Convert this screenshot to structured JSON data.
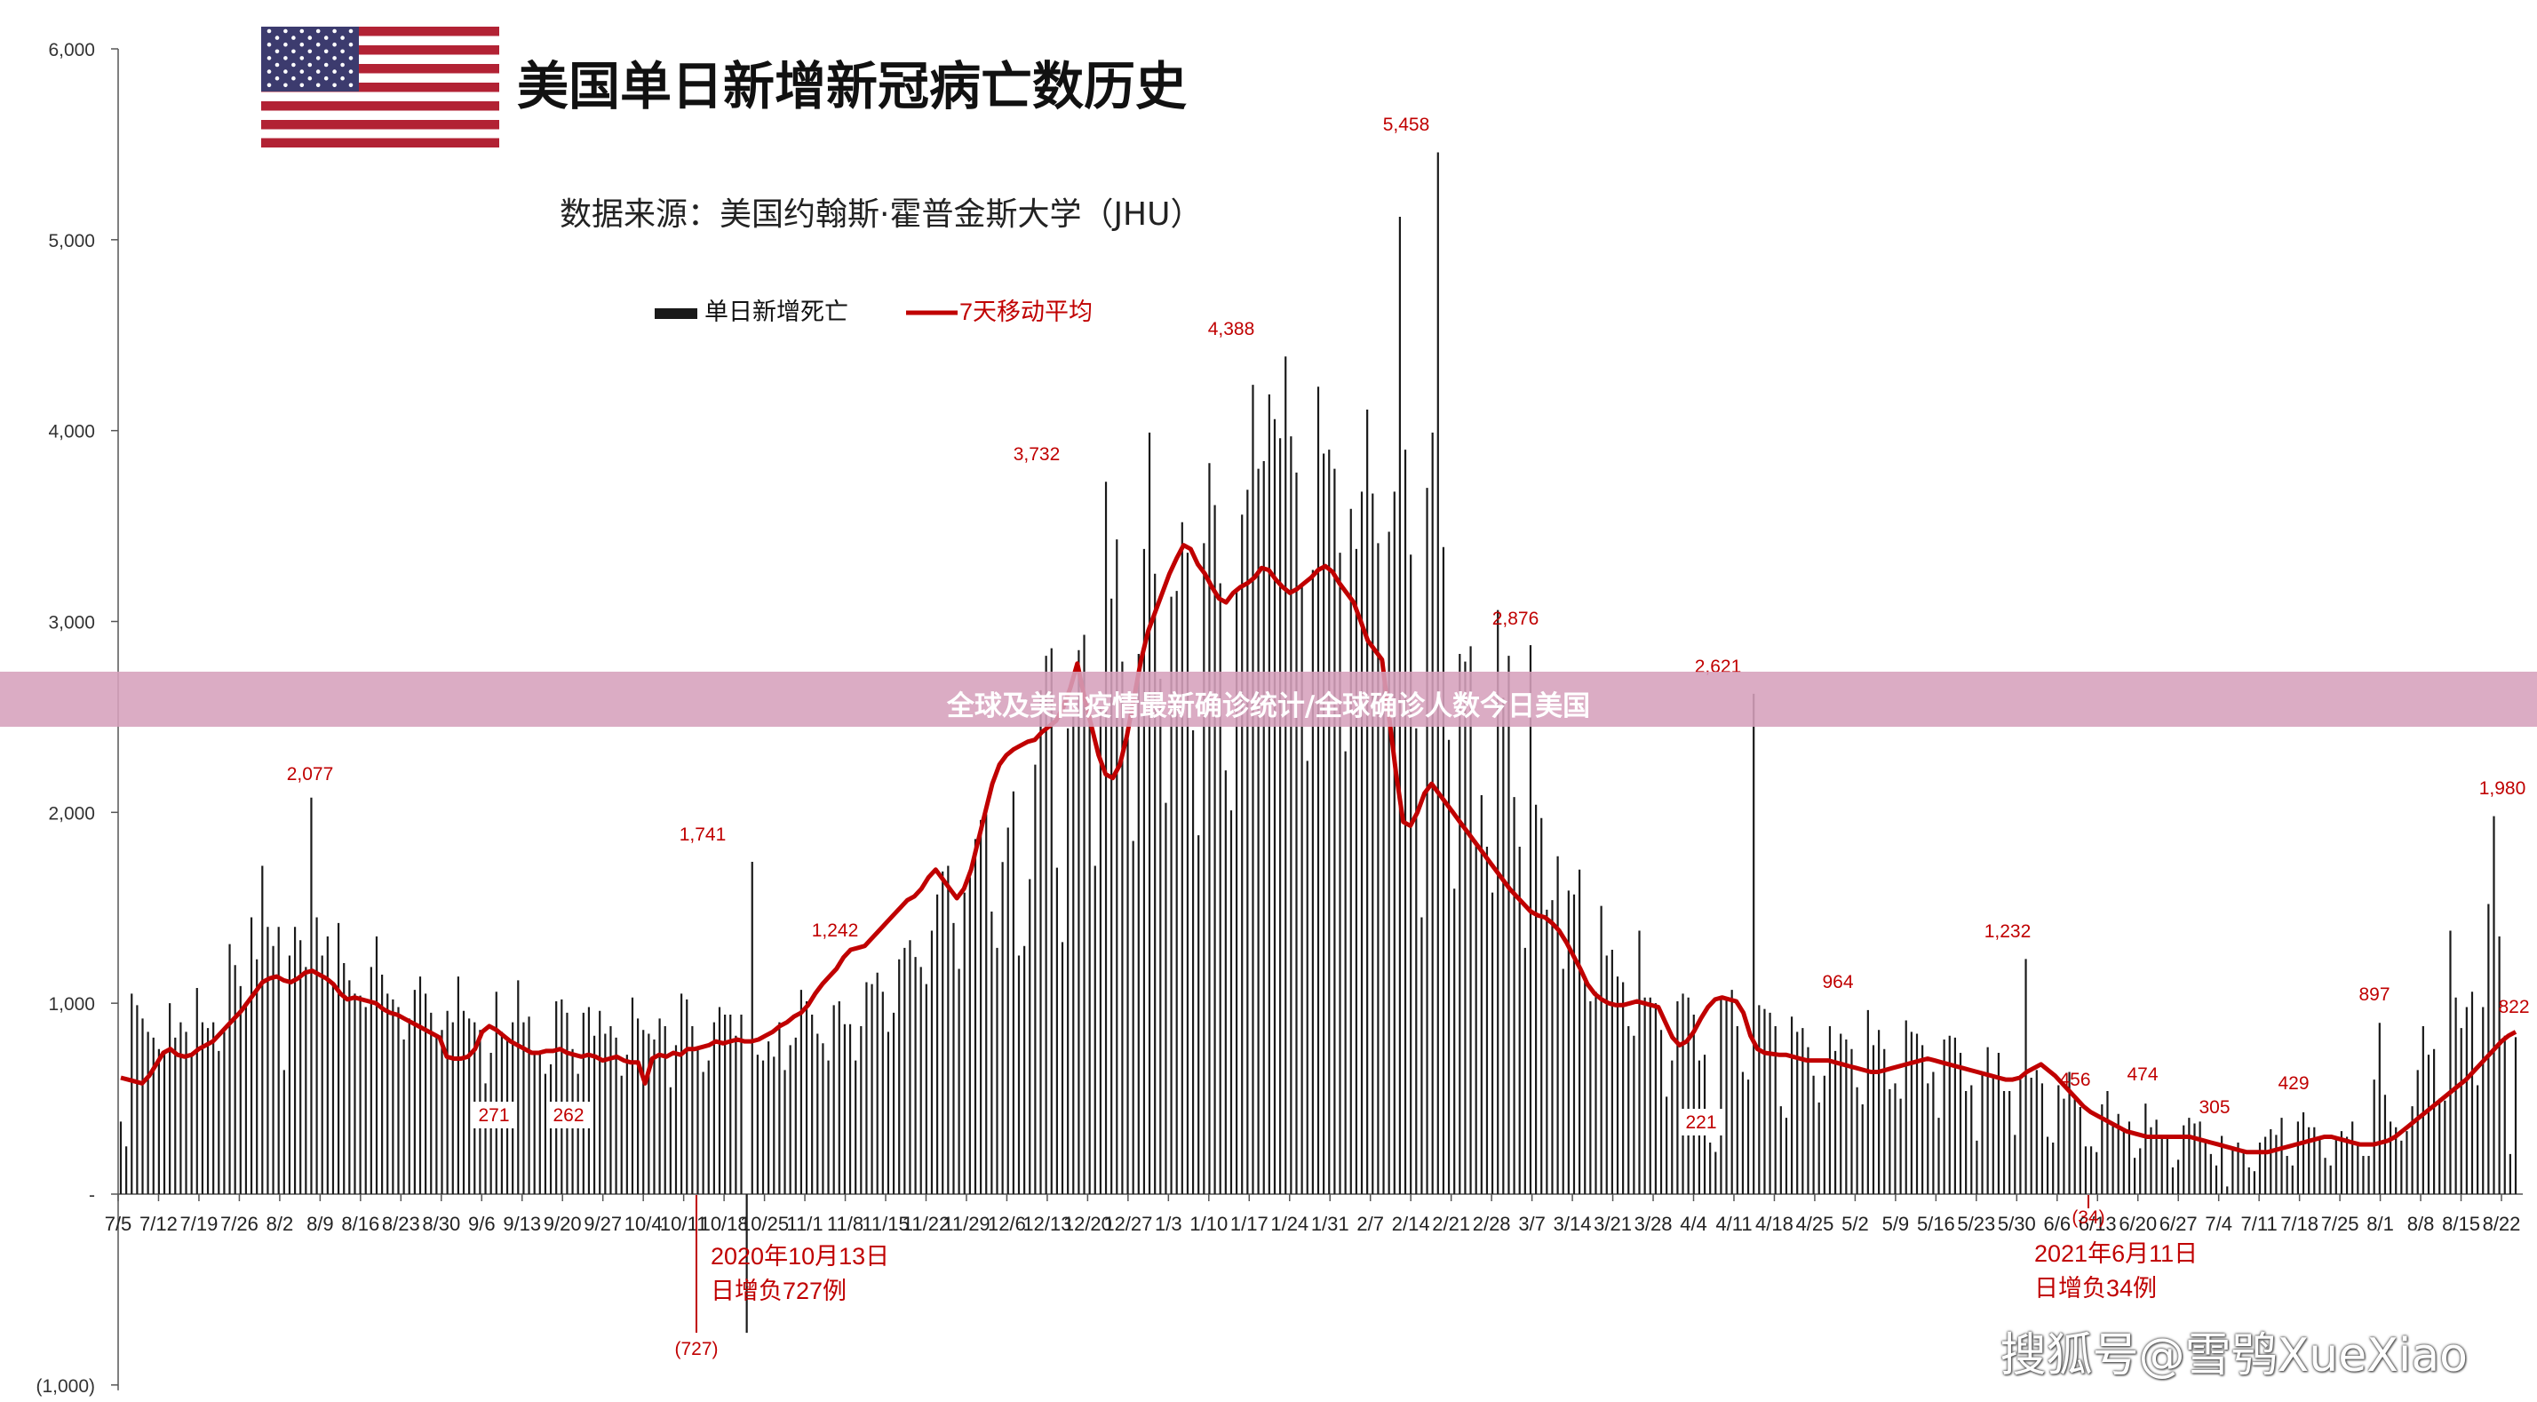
{
  "banner": {
    "text": "全球及美国疫情最新确诊统计/全球确诊人数今日美国"
  },
  "header": {
    "title": "美国单日新增新冠病亡数历史",
    "subtitle": "数据来源：美国约翰斯·霍普金斯大学（JHU）"
  },
  "watermark": "搜狐号@雪鸮XueXiao",
  "colors": {
    "bar": "#1a1a1a",
    "avg": "#c00000",
    "label": "#c00000",
    "axis": "#555555",
    "banner": "#d6a0bc"
  },
  "chart_data": {
    "type": "bar",
    "title": "美国单日新增新冠病亡数历史",
    "ylim": [
      -1000,
      6000
    ],
    "y_ticks": [
      "(1,000)",
      "-",
      "1,000",
      "2,000",
      "3,000",
      "4,000",
      "5,000",
      "6,000"
    ],
    "x_ticks": [
      "7/5",
      "7/12",
      "7/19",
      "7/26",
      "8/2",
      "8/9",
      "8/16",
      "8/23",
      "8/30",
      "9/6",
      "9/13",
      "9/20",
      "9/27",
      "10/4",
      "10/11",
      "10/18",
      "10/25",
      "11/1",
      "11/8",
      "11/15",
      "11/22",
      "11/29",
      "12/6",
      "12/13",
      "12/20",
      "12/27",
      "1/3",
      "1/10",
      "1/17",
      "1/24",
      "1/31",
      "2/7",
      "2/14",
      "2/21",
      "2/28",
      "3/7",
      "3/14",
      "3/21",
      "3/28",
      "4/4",
      "4/11",
      "4/18",
      "4/25",
      "5/2",
      "5/9",
      "5/16",
      "5/23",
      "5/30",
      "6/6",
      "6/13",
      "6/20",
      "6/27",
      "7/4",
      "7/11",
      "7/18",
      "7/25",
      "8/1",
      "8/8",
      "8/15",
      "8/22"
    ],
    "legend": [
      "单日新增死亡",
      "7天移动平均"
    ],
    "series": [
      {
        "name": "单日新增死亡",
        "kind": "daily_bars",
        "values": [
          380,
          250,
          1050,
          990,
          920,
          850,
          820,
          760,
          750,
          1000,
          820,
          900,
          850,
          730,
          1080,
          900,
          870,
          900,
          750,
          850,
          1310,
          1200,
          1090,
          980,
          1450,
          1230,
          1720,
          1400,
          1300,
          1400,
          650,
          1250,
          1400,
          1330,
          1190,
          2077,
          1450,
          1250,
          1350,
          1100,
          1420,
          1210,
          1120,
          1050,
          1040,
          980,
          1190,
          1350,
          1150,
          1050,
          1020,
          980,
          810,
          920,
          1070,
          1140,
          1050,
          950,
          840,
          860,
          960,
          900,
          1140,
          960,
          920,
          900,
          860,
          580,
          740,
          1060,
          850,
          820,
          900,
          1120,
          900,
          930,
          740,
          740,
          630,
          680,
          1010,
          1020,
          950,
          760,
          630,
          950,
          980,
          830,
          960,
          840,
          880,
          820,
          620,
          730,
          1030,
          920,
          860,
          840,
          810,
          920,
          880,
          560,
          780,
          1050,
          1020,
          880,
          770,
          640,
          700,
          900,
          980,
          940,
          940,
          830,
          940,
          -727,
          1741,
          730,
          700,
          800,
          720,
          900,
          650,
          780,
          820,
          1070,
          1010,
          940,
          840,
          790,
          700,
          990,
          1010,
          890,
          890,
          700,
          880,
          1110,
          1100,
          1160,
          1060,
          850,
          950,
          1230,
          1290,
          1330,
          1242,
          1190,
          1100,
          1380,
          1570,
          1690,
          1720,
          1420,
          1180,
          1580,
          1660,
          1860,
          1960,
          1990,
          1480,
          1290,
          1740,
          1920,
          2110,
          1250,
          1300,
          1650,
          2250,
          2640,
          2820,
          2860,
          1710,
          1320,
          2440,
          2500,
          2850,
          2930,
          2520,
          1720,
          2550,
          3732,
          3120,
          3430,
          2790,
          2460,
          1850,
          2830,
          3380,
          3990,
          3250,
          2700,
          2050,
          3130,
          3160,
          3520,
          3360,
          2430,
          1880,
          3410,
          3830,
          3610,
          3200,
          2220,
          2010,
          3160,
          3560,
          3690,
          4240,
          3800,
          3840,
          4190,
          4060,
          3960,
          4388,
          3970,
          3780,
          3190,
          2270,
          3270,
          4230,
          3880,
          3900,
          3800,
          3360,
          2320,
          3590,
          3380,
          3680,
          4110,
          3670,
          3410,
          2790,
          3470,
          3680,
          5120,
          3900,
          3350,
          2440,
          1450,
          3700,
          3990,
          5458,
          3390,
          2380,
          1600,
          2830,
          2790,
          2870,
          1850,
          2090,
          1820,
          1580,
          3060,
          2600,
          2820,
          2080,
          1820,
          1290,
          2876,
          2040,
          1970,
          1490,
          1540,
          1770,
          1180,
          1590,
          1570,
          1700,
          1130,
          1010,
          1060,
          1510,
          1250,
          1280,
          1140,
          1110,
          880,
          830,
          1380,
          1030,
          1030,
          1000,
          860,
          510,
          700,
          1010,
          1050,
          1030,
          940,
          700,
          730,
          270,
          221,
          1020,
          1030,
          1070,
          880,
          640,
          600,
          2621,
          990,
          970,
          950,
          880,
          460,
          400,
          930,
          850,
          870,
          770,
          620,
          480,
          620,
          880,
          750,
          840,
          810,
          760,
          560,
          470,
          964,
          780,
          860,
          760,
          550,
          580,
          500,
          910,
          850,
          840,
          780,
          580,
          640,
          400,
          810,
          830,
          820,
          740,
          540,
          570,
          280,
          640,
          770,
          620,
          740,
          540,
          540,
          310,
          600,
          1232,
          610,
          650,
          580,
          300,
          270,
          570,
          500,
          640,
          500,
          456,
          250,
          250,
          220,
          470,
          540,
          370,
          420,
          340,
          380,
          190,
          240,
          474,
          350,
          390,
          300,
          300,
          140,
          180,
          360,
          400,
          370,
          380,
          270,
          210,
          150,
          305,
          40,
          230,
          270,
          230,
          140,
          120,
          270,
          300,
          340,
          310,
          400,
          200,
          150,
          380,
          429,
          350,
          350,
          300,
          190,
          150,
          290,
          330,
          300,
          380,
          260,
          200,
          200,
          600,
          897,
          520,
          380,
          350,
          280,
          330,
          460,
          650,
          880,
          730,
          760,
          500,
          490,
          1380,
          1030,
          870,
          980,
          1060,
          570,
          980,
          1520,
          1980,
          1350,
          830,
          210,
          822
        ]
      },
      {
        "name": "7天移动平均",
        "kind": "line",
        "values": [
          610,
          600,
          590,
          580,
          620,
          680,
          740,
          760,
          730,
          720,
          730,
          760,
          780,
          800,
          840,
          880,
          920,
          960,
          1010,
          1060,
          1110,
          1130,
          1140,
          1120,
          1110,
          1130,
          1160,
          1170,
          1150,
          1130,
          1100,
          1050,
          1020,
          1030,
          1020,
          1010,
          1000,
          970,
          950,
          940,
          920,
          900,
          880,
          860,
          840,
          820,
          720,
          710,
          710,
          720,
          760,
          850,
          880,
          860,
          830,
          800,
          780,
          760,
          740,
          740,
          750,
          750,
          760,
          740,
          730,
          720,
          730,
          720,
          700,
          710,
          720,
          700,
          690,
          690,
          580,
          710,
          730,
          720,
          740,
          730,
          760,
          760,
          770,
          780,
          800,
          790,
          800,
          810,
          800,
          800,
          810,
          830,
          850,
          880,
          900,
          930,
          950,
          990,
          1050,
          1100,
          1140,
          1180,
          1240,
          1280,
          1290,
          1300,
          1340,
          1380,
          1420,
          1460,
          1500,
          1540,
          1560,
          1600,
          1660,
          1700,
          1650,
          1600,
          1550,
          1600,
          1700,
          1850,
          2000,
          2150,
          2250,
          2300,
          2330,
          2350,
          2370,
          2380,
          2420,
          2450,
          2480,
          2550,
          2650,
          2780,
          2600,
          2450,
          2300,
          2200,
          2180,
          2250,
          2400,
          2600,
          2800,
          2950,
          3050,
          3150,
          3250,
          3330,
          3400,
          3380,
          3300,
          3250,
          3180,
          3120,
          3100,
          3150,
          3180,
          3200,
          3230,
          3280,
          3270,
          3220,
          3180,
          3150,
          3170,
          3200,
          3230,
          3270,
          3290,
          3260,
          3200,
          3150,
          3100,
          3000,
          2900,
          2850,
          2800,
          2500,
          2200,
          1950,
          1930,
          2000,
          2100,
          2150,
          2100,
          2050,
          2000,
          1950,
          1900,
          1850,
          1800,
          1750,
          1700,
          1650,
          1600,
          1560,
          1520,
          1480,
          1460,
          1450,
          1420,
          1380,
          1320,
          1250,
          1180,
          1100,
          1050,
          1020,
          1000,
          990,
          990,
          1000,
          1010,
          1000,
          990,
          980,
          900,
          820,
          780,
          800,
          850,
          920,
          980,
          1020,
          1030,
          1020,
          1010,
          950,
          830,
          760,
          740,
          735,
          730,
          730,
          720,
          710,
          700,
          700,
          700,
          700,
          690,
          680,
          670,
          660,
          650,
          640,
          640,
          650,
          660,
          670,
          680,
          690,
          700,
          710,
          700,
          690,
          680,
          670,
          660,
          650,
          640,
          630,
          620,
          610,
          600,
          600,
          610,
          640,
          660,
          680,
          650,
          620,
          580,
          540,
          500,
          460,
          430,
          410,
          390,
          370,
          350,
          330,
          320,
          310,
          300,
          300,
          300,
          300,
          300,
          300,
          300,
          290,
          280,
          270,
          260,
          250,
          240,
          230,
          220,
          220,
          220,
          220,
          230,
          240,
          250,
          260,
          270,
          280,
          290,
          300,
          300,
          290,
          280,
          270,
          260,
          260,
          260,
          270,
          280,
          300,
          330,
          360,
          390,
          420,
          450,
          480,
          510,
          540,
          570,
          600,
          640,
          680,
          720,
          760,
          800,
          830,
          850
        ]
      }
    ],
    "peak_labels": [
      {
        "label": "2,077",
        "value": 2077
      },
      {
        "label": "271",
        "value": 271
      },
      {
        "label": "262",
        "value": 262
      },
      {
        "label": "1,741",
        "value": 1741
      },
      {
        "label": "1,242",
        "value": 1242
      },
      {
        "label": "3,732",
        "value": 3732
      },
      {
        "label": "4,388",
        "value": 4388
      },
      {
        "label": "5,458",
        "value": 5458
      },
      {
        "label": "2,876",
        "value": 2876
      },
      {
        "label": "2,621",
        "value": 2621
      },
      {
        "label": "221",
        "value": 221
      },
      {
        "label": "964",
        "value": 964
      },
      {
        "label": "1,232",
        "value": 1232
      },
      {
        "label": "456",
        "value": 456
      },
      {
        "label": "474",
        "value": 474
      },
      {
        "label": "305",
        "value": 305
      },
      {
        "label": "429",
        "value": 429
      },
      {
        "label": "897",
        "value": 897
      },
      {
        "label": "1,980",
        "value": 1980
      },
      {
        "label": "822",
        "value": 822
      },
      {
        "label": "(727)",
        "value": -727
      },
      {
        "label": "(34)",
        "value": -34
      }
    ],
    "annotations": [
      {
        "line1": "2020年10月13日",
        "line2": "日增负727例"
      },
      {
        "line1": "2021年6月11日",
        "line2": "日增负34例"
      }
    ]
  }
}
